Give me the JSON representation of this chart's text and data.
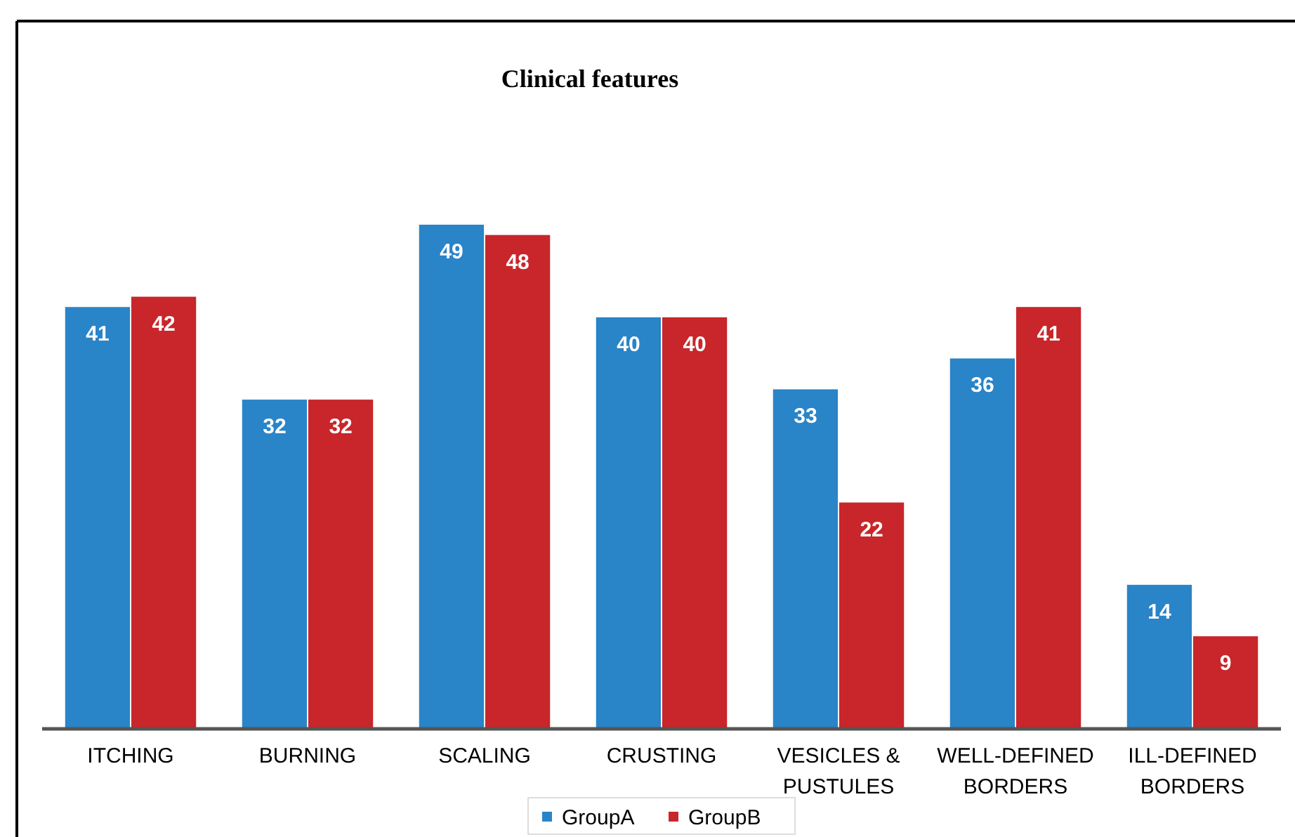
{
  "chart_data": {
    "type": "bar",
    "title": "Clinical features",
    "categories": [
      "ITCHING",
      "BURNING",
      "SCALING",
      "CRUSTING",
      "VESICLES & PUSTULES",
      "WELL-DEFINED BORDERS",
      "ILL-DEFINED BORDERS"
    ],
    "series": [
      {
        "name": "GroupA",
        "color": "#2a84c8",
        "values": [
          41,
          32,
          49,
          40,
          33,
          36,
          14
        ]
      },
      {
        "name": "GroupB",
        "color": "#c8262a",
        "values": [
          42,
          32,
          48,
          40,
          22,
          41,
          9
        ]
      }
    ],
    "data_labels": true,
    "legend": "bottom",
    "grid": false
  }
}
